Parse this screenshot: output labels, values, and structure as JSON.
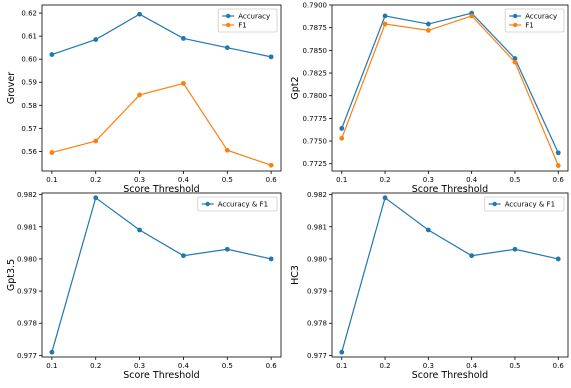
{
  "colors": {
    "accuracy": "#1f77b4",
    "f1": "#ff7f0e"
  },
  "chart_data": [
    {
      "type": "line",
      "x": [
        0.1,
        0.2,
        0.3,
        0.4,
        0.5,
        0.6
      ],
      "xticks": [
        "0.1",
        "0.2",
        "0.3",
        "0.4",
        "0.5",
        "0.6"
      ],
      "xlabel": "Score Threshold",
      "ylabel": "Grover",
      "ylim": [
        0.5515,
        0.6235
      ],
      "yticks": [
        "0.56",
        "0.57",
        "0.58",
        "0.59",
        "0.60",
        "0.61",
        "0.62"
      ],
      "legend_position": "top-right",
      "series": [
        {
          "name": "Accuracy",
          "color": "#1f77b4",
          "values": [
            0.602,
            0.6085,
            0.6195,
            0.609,
            0.605,
            0.601
          ]
        },
        {
          "name": "F1",
          "color": "#ff7f0e",
          "values": [
            0.5595,
            0.5645,
            0.5845,
            0.5895,
            0.5605,
            0.554
          ]
        }
      ]
    },
    {
      "type": "line",
      "x": [
        0.1,
        0.2,
        0.3,
        0.4,
        0.5,
        0.6
      ],
      "xticks": [
        "0.1",
        "0.2",
        "0.3",
        "0.4",
        "0.5",
        "0.6"
      ],
      "xlabel": "Score Threshold",
      "ylabel": "Gpt2",
      "ylim": [
        0.7717,
        0.79
      ],
      "yticks": [
        "0.7725",
        "0.7750",
        "0.7775",
        "0.7800",
        "0.7825",
        "0.7850",
        "0.7875",
        "0.7900"
      ],
      "legend_position": "top-right",
      "series": [
        {
          "name": "Accuracy",
          "color": "#1f77b4",
          "values": [
            0.7764,
            0.7888,
            0.7879,
            0.7891,
            0.7841,
            0.7737
          ]
        },
        {
          "name": "F1",
          "color": "#ff7f0e",
          "values": [
            0.7753,
            0.7879,
            0.7872,
            0.7888,
            0.7837,
            0.7723
          ]
        }
      ]
    },
    {
      "type": "line",
      "x": [
        0.1,
        0.2,
        0.3,
        0.4,
        0.5,
        0.6
      ],
      "xticks": [
        "0.1",
        "0.2",
        "0.3",
        "0.4",
        "0.5",
        "0.6"
      ],
      "xlabel": "Score Threshold",
      "ylabel": "Gpt3.5",
      "ylim": [
        0.97695,
        0.98205
      ],
      "yticks": [
        "0.977",
        "0.978",
        "0.979",
        "0.980",
        "0.981",
        "0.982"
      ],
      "legend_position": "top-right",
      "series": [
        {
          "name": "Accuracy & F1",
          "color": "#1f77b4",
          "values": [
            0.9771,
            0.9819,
            0.9809,
            0.9801,
            0.9803,
            0.98
          ]
        }
      ]
    },
    {
      "type": "line",
      "x": [
        0.1,
        0.2,
        0.3,
        0.4,
        0.5,
        0.6
      ],
      "xticks": [
        "0.1",
        "0.2",
        "0.3",
        "0.4",
        "0.5",
        "0.6"
      ],
      "xlabel": "Score Threshold",
      "ylabel": "HC3",
      "ylim": [
        0.97695,
        0.98205
      ],
      "yticks": [
        "0.977",
        "0.978",
        "0.979",
        "0.980",
        "0.981",
        "0.982"
      ],
      "legend_position": "top-right",
      "series": [
        {
          "name": "Accuracy & F1",
          "color": "#1f77b4",
          "values": [
            0.9771,
            0.9819,
            0.9809,
            0.9801,
            0.9803,
            0.98
          ]
        }
      ]
    }
  ]
}
